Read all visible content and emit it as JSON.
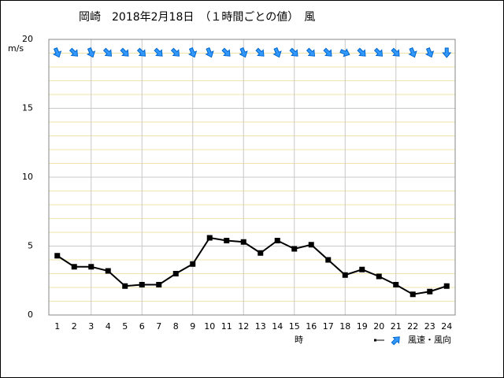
{
  "chart_data": {
    "type": "line",
    "title": "岡崎　2018年2月18日　（１時間ごとの値）　風",
    "y_label": "m/s",
    "x_label": "時",
    "legend": "風速・風向",
    "x": [
      1,
      2,
      3,
      4,
      5,
      6,
      7,
      8,
      9,
      10,
      11,
      12,
      13,
      14,
      15,
      16,
      17,
      18,
      19,
      20,
      21,
      22,
      23,
      24
    ],
    "xlim": [
      0.5,
      24.5
    ],
    "xticks": [
      1,
      2,
      3,
      4,
      5,
      6,
      7,
      8,
      9,
      10,
      11,
      12,
      13,
      14,
      15,
      16,
      17,
      18,
      19,
      20,
      21,
      22,
      23,
      24
    ],
    "x_grid": [
      3,
      6,
      9,
      12,
      15,
      18,
      21
    ],
    "ylim": [
      0,
      20
    ],
    "yticks": [
      0,
      5,
      10,
      15,
      20
    ],
    "y_minor_grid": [
      1,
      2,
      3,
      4,
      6,
      7,
      8,
      9,
      11,
      12,
      13,
      14,
      16,
      17,
      18,
      19
    ],
    "series": [
      {
        "color": "#000000",
        "values": [
          4.3,
          3.5,
          3.5,
          3.2,
          2.1,
          2.2,
          2.2,
          3.0,
          3.7,
          5.6,
          5.4,
          5.3,
          4.5,
          5.4,
          4.8,
          5.1,
          4.0,
          2.9,
          3.3,
          2.8,
          2.2,
          1.5,
          1.7,
          2.1
        ],
        "wind_from_deg": [
          337.5,
          315,
          337.5,
          315,
          315,
          315,
          315,
          315,
          337.5,
          337.5,
          315,
          337.5,
          315,
          337.5,
          315,
          315,
          315,
          292.5,
          315,
          315,
          315,
          337.5,
          337.5,
          360
        ]
      }
    ]
  }
}
